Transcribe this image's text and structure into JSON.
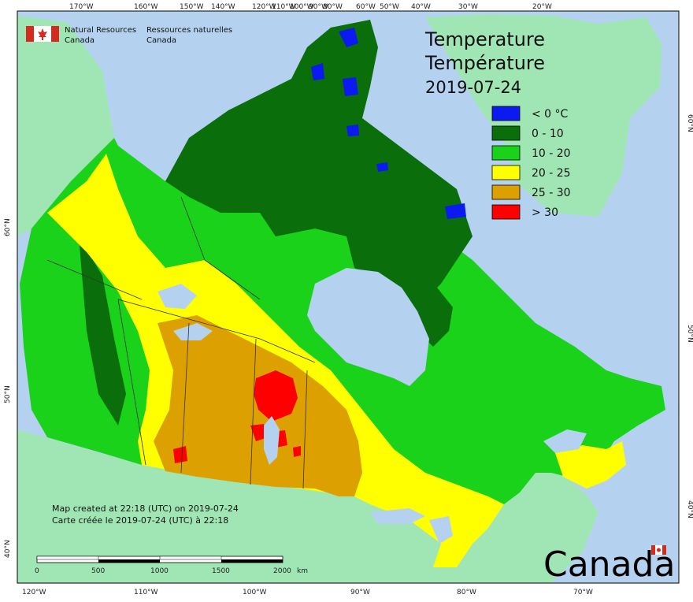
{
  "agency": {
    "en_line1": "Natural Resources",
    "en_line2": "Canada",
    "fr_line1": "Ressources naturelles",
    "fr_line2": "Canada"
  },
  "title": {
    "line1": "Temperature",
    "line2": "Température",
    "date": "2019-07-24"
  },
  "legend": [
    {
      "label": "< 0 °C",
      "color": "#0a1af0"
    },
    {
      "label": "0 - 10",
      "color": "#0a6e0a"
    },
    {
      "label": "10 - 20",
      "color": "#1ad21a"
    },
    {
      "label": "20 - 25",
      "color": "#ffff00"
    },
    {
      "label": "25 - 30",
      "color": "#dca000"
    },
    {
      "label": "> 30",
      "color": "#ff0000"
    }
  ],
  "credits": {
    "en": "Map created at 22:18 (UTC) on 2019-07-24",
    "fr": "Carte créée le 2019-07-24 (UTC) à 22:18"
  },
  "scale_bar": {
    "labels": [
      "0",
      "500",
      "1000",
      "1500",
      "2000"
    ],
    "unit": "km"
  },
  "wordmark": "Canada",
  "colors": {
    "ocean": "#b4d2f0",
    "foreign_land": "#a0e6b4",
    "lakes": "#b4d2f0",
    "border": "#333333"
  },
  "graticule_labels": {
    "top": [
      "170°W",
      "160°W",
      "150°W",
      "140°W",
      "120°W",
      "110°W",
      "100°W",
      "90°W",
      "80°W",
      "60°W",
      "50°W",
      "40°W",
      "30°W",
      "20°W"
    ],
    "bottom": [
      "120°W",
      "110°W",
      "100°W",
      "90°W",
      "80°W",
      "70°W"
    ],
    "left": [
      "60°N",
      "50°N",
      "40°N"
    ],
    "right": [
      "60°N",
      "50°N",
      "40°N"
    ]
  }
}
